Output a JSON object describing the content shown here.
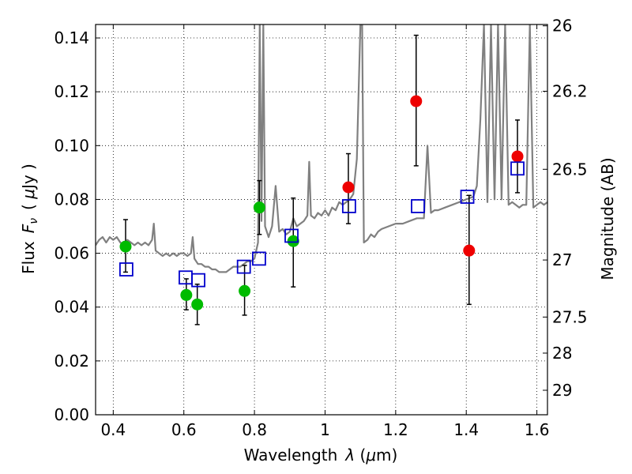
{
  "chart_data": {
    "type": "scatter",
    "xlabel": "Wavelength",
    "xlabel_symbol": "λ",
    "xlabel_unit_open": " (",
    "xlabel_unit_mu": "μ",
    "xlabel_unit_close": "m)",
    "ylabel": "Flux",
    "ylabel_symbol": "F",
    "ylabel_subscript": "ν",
    "ylabel_unit_open": "( ",
    "ylabel_unit_mu": "μ",
    "ylabel_unit_close": "Jy )",
    "y2label": "Magnitude (AB)",
    "xlim": [
      0.35,
      1.63
    ],
    "ylim": [
      0.0,
      0.145
    ],
    "grid": true,
    "x_ticks": [
      0.4,
      0.6,
      0.8,
      1.0,
      1.2,
      1.4,
      1.6
    ],
    "x_tick_labels": [
      "0.4",
      "0.6",
      "0.8",
      "1",
      "1.2",
      "1.4",
      "1.6"
    ],
    "y_ticks": [
      0.0,
      0.02,
      0.04,
      0.06,
      0.08,
      0.1,
      0.12,
      0.14
    ],
    "y_tick_labels": [
      "0.00",
      "0.02",
      "0.04",
      "0.06",
      "0.08",
      "0.10",
      "0.12",
      "0.14"
    ],
    "y2_ticks": [
      {
        "flux": 0.1445,
        "label": "26"
      },
      {
        "flux": 0.1202,
        "label": "26.2"
      },
      {
        "flux": 0.0912,
        "label": "26.5"
      },
      {
        "flux": 0.0575,
        "label": "27"
      },
      {
        "flux": 0.0363,
        "label": "27.5"
      },
      {
        "flux": 0.0229,
        "label": "28"
      },
      {
        "flux": 0.0091,
        "label": "29"
      }
    ],
    "series": [
      {
        "type": "line",
        "color": "#808080",
        "x": [
          0.35,
          0.36,
          0.37,
          0.38,
          0.39,
          0.4,
          0.41,
          0.42,
          0.43,
          0.44,
          0.45,
          0.46,
          0.47,
          0.48,
          0.49,
          0.5,
          0.51,
          0.515,
          0.52,
          0.53,
          0.54,
          0.55,
          0.56,
          0.57,
          0.58,
          0.59,
          0.6,
          0.61,
          0.62,
          0.625,
          0.63,
          0.64,
          0.65,
          0.66,
          0.67,
          0.68,
          0.69,
          0.7,
          0.71,
          0.72,
          0.73,
          0.74,
          0.75,
          0.76,
          0.77,
          0.78,
          0.79,
          0.8,
          0.81,
          0.815,
          0.82,
          0.825,
          0.83,
          0.84,
          0.85,
          0.86,
          0.87,
          0.88,
          0.89,
          0.9,
          0.91,
          0.92,
          0.93,
          0.94,
          0.95,
          0.955,
          0.96,
          0.97,
          0.98,
          0.99,
          1.0,
          1.01,
          1.02,
          1.03,
          1.04,
          1.05,
          1.06,
          1.07,
          1.08,
          1.09,
          1.1,
          1.105,
          1.11,
          1.12,
          1.13,
          1.14,
          1.15,
          1.16,
          1.18,
          1.2,
          1.22,
          1.24,
          1.26,
          1.28,
          1.29,
          1.3,
          1.31,
          1.32,
          1.34,
          1.36,
          1.38,
          1.4,
          1.42,
          1.43,
          1.44,
          1.45,
          1.46,
          1.47,
          1.48,
          1.49,
          1.5,
          1.51,
          1.52,
          1.53,
          1.54,
          1.55,
          1.56,
          1.57,
          1.58,
          1.59,
          1.6,
          1.61,
          1.62,
          1.63
        ],
        "y": [
          0.063,
          0.065,
          0.066,
          0.064,
          0.066,
          0.065,
          0.066,
          0.064,
          0.063,
          0.065,
          0.064,
          0.063,
          0.064,
          0.063,
          0.064,
          0.063,
          0.065,
          0.071,
          0.061,
          0.06,
          0.059,
          0.06,
          0.059,
          0.06,
          0.059,
          0.06,
          0.06,
          0.059,
          0.06,
          0.066,
          0.058,
          0.056,
          0.056,
          0.055,
          0.055,
          0.054,
          0.054,
          0.053,
          0.053,
          0.053,
          0.054,
          0.055,
          0.055,
          0.055,
          0.056,
          0.057,
          0.057,
          0.058,
          0.064,
          0.145,
          0.072,
          0.145,
          0.07,
          0.066,
          0.07,
          0.085,
          0.068,
          0.069,
          0.067,
          0.068,
          0.073,
          0.07,
          0.071,
          0.072,
          0.074,
          0.094,
          0.074,
          0.073,
          0.075,
          0.074,
          0.076,
          0.074,
          0.077,
          0.076,
          0.079,
          0.078,
          0.079,
          0.08,
          0.082,
          0.095,
          0.145,
          0.145,
          0.064,
          0.065,
          0.067,
          0.066,
          0.068,
          0.069,
          0.07,
          0.071,
          0.071,
          0.072,
          0.073,
          0.073,
          0.1,
          0.075,
          0.076,
          0.076,
          0.077,
          0.078,
          0.079,
          0.08,
          0.081,
          0.085,
          0.11,
          0.145,
          0.079,
          0.145,
          0.08,
          0.145,
          0.08,
          0.145,
          0.078,
          0.079,
          0.078,
          0.077,
          0.078,
          0.078,
          0.145,
          0.077,
          0.078,
          0.079,
          0.078,
          0.079
        ]
      },
      {
        "type": "errorbar",
        "color": "#000000",
        "x": [
          0.435,
          0.607,
          0.638,
          0.772,
          0.814,
          0.91,
          1.066,
          1.258,
          1.408,
          1.545
        ],
        "y_low": [
          0.053,
          0.039,
          0.0335,
          0.037,
          0.067,
          0.0475,
          0.071,
          0.0925,
          0.041,
          0.0825
        ],
        "y_high": [
          0.0725,
          0.0505,
          0.0485,
          0.0555,
          0.087,
          0.0805,
          0.097,
          0.141,
          0.0815,
          0.1095
        ]
      },
      {
        "type": "scatter",
        "marker": "circle",
        "color": "#00bb00",
        "x": [
          0.435,
          0.607,
          0.638,
          0.772,
          0.814,
          0.91
        ],
        "y": [
          0.0625,
          0.0445,
          0.041,
          0.046,
          0.077,
          0.0645
        ]
      },
      {
        "type": "scatter",
        "marker": "circle",
        "color": "#ee0000",
        "x": [
          1.066,
          1.258,
          1.408,
          1.545
        ],
        "y": [
          0.0845,
          0.1165,
          0.061,
          0.096
        ]
      },
      {
        "type": "scatter",
        "marker": "square",
        "color": "#0000cc",
        "x": [
          0.437,
          0.605,
          0.641,
          0.77,
          0.813,
          0.905,
          1.068,
          1.263,
          1.403,
          1.545
        ],
        "y": [
          0.054,
          0.051,
          0.05,
          0.055,
          0.058,
          0.0665,
          0.0775,
          0.0775,
          0.081,
          0.0915
        ]
      }
    ]
  }
}
